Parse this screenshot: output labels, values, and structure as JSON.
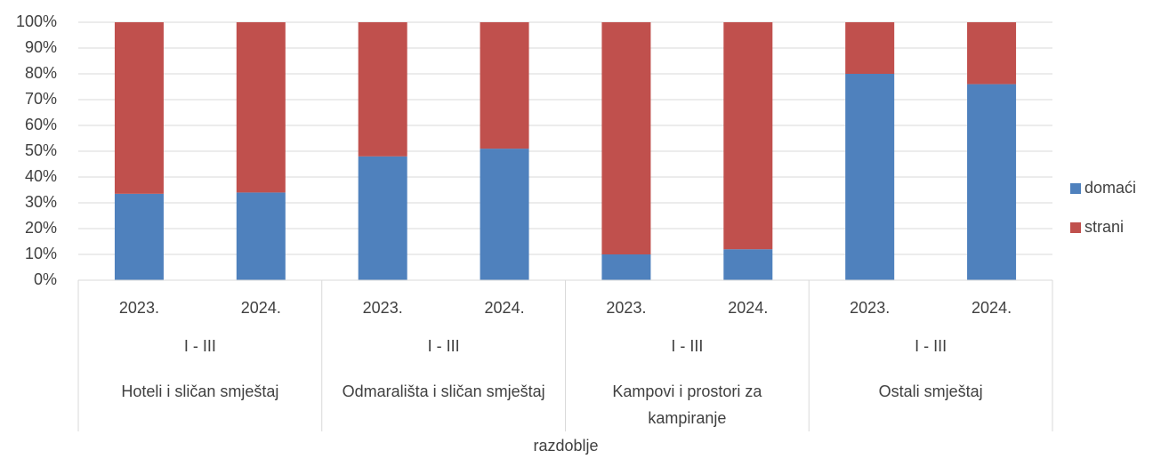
{
  "chart_data": {
    "type": "stacked_bar_100",
    "x_label": "razdoblje",
    "categories": [
      "2023.",
      "2024.",
      "2023.",
      "2024.",
      "2023.",
      "2024.",
      "2023.",
      "2024."
    ],
    "periods": [
      "I - III",
      "I - III",
      "I - III",
      "I - III"
    ],
    "groups": [
      "Hoteli i sličan smještaj",
      "Odmarališta i sličan smještaj",
      "Kampovi i prostori za kampiranje",
      "Ostali smještaj"
    ],
    "series": [
      {
        "name": "domaći",
        "color": "#4f81bd",
        "values": [
          33.5,
          34,
          48,
          51,
          10,
          12,
          80,
          76
        ]
      },
      {
        "name": "strani",
        "color": "#c0504d",
        "values": [
          66.5,
          66,
          52,
          49,
          90,
          88,
          20,
          24
        ]
      }
    ],
    "ylim": [
      0,
      100
    ],
    "yticks": [
      {
        "value": 0,
        "label": "0%"
      },
      {
        "value": 10,
        "label": "10%"
      },
      {
        "value": 20,
        "label": "20%"
      },
      {
        "value": 30,
        "label": "30%"
      },
      {
        "value": 40,
        "label": "40%"
      },
      {
        "value": 50,
        "label": "50%"
      },
      {
        "value": 60,
        "label": "60%"
      },
      {
        "value": 70,
        "label": "70%"
      },
      {
        "value": 80,
        "label": "80%"
      },
      {
        "value": 90,
        "label": "90%"
      },
      {
        "value": 100,
        "label": "100%"
      }
    ],
    "grid": true,
    "legend": "right"
  }
}
